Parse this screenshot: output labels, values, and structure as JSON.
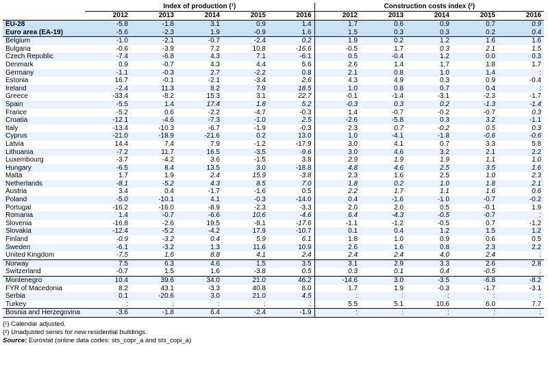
{
  "groups": {
    "production": "Index of production (¹)",
    "costs": "Construction costs index (²)"
  },
  "years": [
    "2012",
    "2013",
    "2014",
    "2015",
    "2016",
    "2012",
    "2013",
    "2014",
    "2015",
    "2016"
  ],
  "rows": [
    {
      "name": "EU-28",
      "v": [
        "-5.8",
        "-1.8",
        "3.1",
        "0.9",
        "1.4",
        "1.7",
        "0.6",
        "0.9",
        "0.7",
        "0.9"
      ],
      "i": [
        0,
        0,
        0,
        0,
        0,
        0,
        0,
        0,
        0,
        1
      ],
      "hl": true
    },
    {
      "name": "Euro area (EA-19)",
      "v": [
        "-5.6",
        "-2.3",
        "1.9",
        "-0.9",
        "1.6",
        "1.5",
        "0.3",
        "0.3",
        "0.2",
        "0.4"
      ],
      "i": [
        0,
        0,
        0,
        0,
        0,
        0,
        0,
        0,
        0,
        1
      ],
      "hl": true
    },
    {
      "name": "Belgium",
      "v": [
        "-1.0",
        "-2.1",
        "-0.7",
        "-2.4",
        "0.2",
        "1.9",
        "0.2",
        "1.2",
        "1.6",
        "1.6"
      ],
      "i": [
        0,
        0,
        0,
        0,
        1,
        0,
        0,
        0,
        0,
        0
      ],
      "grp": true
    },
    {
      "name": "Bulgaria",
      "v": [
        "-0.6",
        "-3.9",
        "7.2",
        "10.8",
        "-16.6",
        "-0.5",
        "1.7",
        "0.3",
        "2.1",
        "1.5"
      ],
      "i": [
        0,
        0,
        0,
        0,
        1,
        0,
        0,
        1,
        1,
        1
      ]
    },
    {
      "name": "Czech Republic",
      "v": [
        "-7.4",
        "-6.8",
        "4.3",
        "7.1",
        "-6.1",
        "0.5",
        "-0.4",
        "1.2",
        "0.0",
        "0.3"
      ],
      "i": [
        0,
        0,
        0,
        0,
        0,
        0,
        0,
        0,
        0,
        0
      ]
    },
    {
      "name": "Denmark",
      "v": [
        "0.9",
        "-0.7",
        "4.3",
        "4.4",
        "5.6",
        "2.6",
        "1.4",
        "1.7",
        "1.8",
        "1.7"
      ],
      "i": [
        0,
        0,
        0,
        0,
        0,
        0,
        0,
        0,
        0,
        0
      ]
    },
    {
      "name": "Germany",
      "v": [
        "-1.1",
        "-0.3",
        "2.7",
        "-2.2",
        "0.8",
        "2.1",
        "0.8",
        "1.0",
        "1.4",
        ":"
      ],
      "i": [
        0,
        0,
        0,
        0,
        0,
        0,
        0,
        0,
        0,
        0
      ]
    },
    {
      "name": "Estonia",
      "v": [
        "16.7",
        "-0.1",
        "-2.1",
        "-3.4",
        "2.6",
        "4.3",
        "4.9",
        "0.3",
        "0.9",
        "-0.4"
      ],
      "i": [
        0,
        0,
        0,
        0,
        1,
        0,
        0,
        0,
        0,
        0
      ]
    },
    {
      "name": "Ireland",
      "v": [
        "-2.4",
        "11.3",
        "8.2",
        "7.9",
        "18.5",
        "1.0",
        "0.8",
        "0.7",
        "0.4",
        ":"
      ],
      "i": [
        0,
        0,
        0,
        0,
        1,
        0,
        0,
        0,
        0,
        0
      ]
    },
    {
      "name": "Greece",
      "v": [
        "-33.4",
        "-8.2",
        "15.3",
        "3.1",
        "22.7",
        "-0.1",
        "-1.4",
        "-3.1",
        "-2.3",
        "-1.7"
      ],
      "i": [
        0,
        0,
        0,
        0,
        1,
        0,
        0,
        0,
        0,
        0
      ]
    },
    {
      "name": "Spain",
      "v": [
        "-5.5",
        "1.4",
        "17.4",
        "1.8",
        "5.2",
        "-0.3",
        "0.3",
        "0.2",
        "-1.3",
        "-1.4"
      ],
      "i": [
        0,
        0,
        1,
        1,
        1,
        1,
        1,
        1,
        1,
        1
      ]
    },
    {
      "name": "France",
      "v": [
        "-5.2",
        "0.6",
        "-2.2",
        "-4.7",
        "-0.3",
        "1.4",
        "-0.7",
        "-0.2",
        "-0.7",
        "0.3"
      ],
      "i": [
        0,
        0,
        0,
        0,
        0,
        0,
        0,
        0,
        0,
        1
      ]
    },
    {
      "name": "Croatia",
      "v": [
        "-12.1",
        "-4.6",
        "-7.3",
        "-1.0",
        "2.5",
        "-2.6",
        "-5.8",
        "0.3",
        "3.2",
        "-1.1"
      ],
      "i": [
        0,
        0,
        0,
        0,
        1,
        0,
        0,
        0,
        0,
        0
      ]
    },
    {
      "name": "Italy",
      "v": [
        "-13.4",
        "-10.3",
        "-6.7",
        "-1.9",
        "-0.3",
        "2.3",
        "0.7",
        "-0.2",
        "0.5",
        "0.3"
      ],
      "i": [
        0,
        0,
        0,
        0,
        0,
        0,
        1,
        1,
        1,
        1
      ]
    },
    {
      "name": "Cyprus",
      "v": [
        "-21.0",
        "-18.9",
        "-21.6",
        "0.2",
        "13.0",
        "1.0",
        "-4.1",
        "-1.8",
        "-0.6",
        "-0.6"
      ],
      "i": [
        0,
        0,
        0,
        0,
        0,
        0,
        0,
        0,
        1,
        1
      ]
    },
    {
      "name": "Latvia",
      "v": [
        "14.4",
        "7.4",
        "7.9",
        "-1.2",
        "-17.9",
        "3.0",
        "4.1",
        "0.7",
        "3.3",
        "5.8"
      ],
      "i": [
        0,
        0,
        0,
        0,
        0,
        0,
        0,
        0,
        0,
        0
      ]
    },
    {
      "name": "Lithuania",
      "v": [
        "-7.2",
        "11.7",
        "16.5",
        "-3.5",
        "-9.6",
        "3.0",
        "4.6",
        "3.2",
        "2.1",
        "2.2"
      ],
      "i": [
        0,
        0,
        0,
        0,
        1,
        0,
        0,
        0,
        0,
        0
      ]
    },
    {
      "name": "Luxembourg",
      "v": [
        "-3.7",
        "-4.2",
        "3.6",
        "-1.5",
        "3.8",
        "2.9",
        "1.9",
        "1.9",
        "1.1",
        "1.0"
      ],
      "i": [
        0,
        0,
        0,
        0,
        0,
        1,
        1,
        1,
        1,
        1
      ]
    },
    {
      "name": "Hungary",
      "v": [
        "-6.5",
        "8.4",
        "13.5",
        "3.0",
        "-18.8",
        "4.8",
        "4.6",
        "2.5",
        "3.5",
        "1.6"
      ],
      "i": [
        0,
        0,
        0,
        0,
        0,
        1,
        1,
        1,
        1,
        1
      ]
    },
    {
      "name": "Malta",
      "v": [
        "1.7",
        "1.9",
        "2.4",
        "15.9",
        "-3.8",
        "2.3",
        "1.6",
        "2.5",
        "1.0",
        "2.3"
      ],
      "i": [
        0,
        0,
        1,
        1,
        1,
        0,
        0,
        0,
        1,
        1
      ]
    },
    {
      "name": "Netherlands",
      "v": [
        "-8.1",
        "-5.2",
        "4.3",
        "8.5",
        "7.0",
        "1.8",
        "0.2",
        "1.0",
        "1.8",
        "2.1"
      ],
      "i": [
        1,
        1,
        1,
        1,
        1,
        1,
        1,
        1,
        1,
        1
      ]
    },
    {
      "name": "Austria",
      "v": [
        "3.4",
        "0.4",
        "-1.7",
        "-1.6",
        "0.5",
        "2.2",
        "1.7",
        "1.1",
        "1.6",
        "0.6"
      ],
      "i": [
        0,
        0,
        0,
        0,
        0,
        1,
        1,
        1,
        1,
        1
      ]
    },
    {
      "name": "Poland",
      "v": [
        "-5.0",
        "-10.1",
        "4.1",
        "-0.3",
        "-14.0",
        "0.4",
        "-1.6",
        "-1.0",
        "-0.7",
        "-0.2"
      ],
      "i": [
        0,
        0,
        0,
        0,
        0,
        0,
        0,
        0,
        0,
        0
      ]
    },
    {
      "name": "Portugal",
      "v": [
        "-16.2",
        "-16.0",
        "-8.9",
        "-2.3",
        "-3.3",
        "2.0",
        "2.0",
        "0.5",
        "-0.1",
        "1.9"
      ],
      "i": [
        0,
        0,
        0,
        0,
        0,
        0,
        0,
        0,
        0,
        0
      ]
    },
    {
      "name": "Romania",
      "v": [
        "1.4",
        "-0.7",
        "-6.6",
        "10.6",
        "-4.6",
        "6.4",
        "-4.3",
        "-0.5",
        "-0.7",
        ":"
      ],
      "i": [
        0,
        0,
        0,
        1,
        1,
        1,
        1,
        1,
        0,
        0
      ]
    },
    {
      "name": "Slovenia",
      "v": [
        "-16.8",
        "-2.6",
        "19.5",
        "-8.1",
        "-17.6",
        "-1.1",
        "-1.2",
        "-0.5",
        "0.7",
        "-1.2"
      ],
      "i": [
        0,
        0,
        0,
        0,
        1,
        0,
        0,
        0,
        0,
        0
      ]
    },
    {
      "name": "Slovakia",
      "v": [
        "-12.4",
        "-5.2",
        "-4.2",
        "17.9",
        "-10.7",
        "0.1",
        "0.4",
        "1.2",
        "1.5",
        "1.2"
      ],
      "i": [
        0,
        0,
        0,
        0,
        0,
        0,
        0,
        0,
        0,
        0
      ]
    },
    {
      "name": "Finland",
      "v": [
        "-0.9",
        "-3.2",
        "0.4",
        "5.9",
        "6.1",
        "1.8",
        "1.0",
        "0.9",
        "0.6",
        "0.5"
      ],
      "i": [
        1,
        1,
        1,
        1,
        1,
        0,
        0,
        0,
        0,
        0
      ]
    },
    {
      "name": "Sweden",
      "v": [
        "-6.1",
        "-3.2",
        "1.3",
        "11.6",
        "10.9",
        "2.6",
        "1.6",
        "0.8",
        "2.3",
        "2.2"
      ],
      "i": [
        0,
        0,
        0,
        0,
        0,
        0,
        0,
        0,
        0,
        0
      ]
    },
    {
      "name": "United Kingdom",
      "v": [
        "-7.5",
        "1.6",
        "8.8",
        "4.1",
        "2.4",
        "2.4",
        "2.4",
        "4.0",
        "2.4",
        ":"
      ],
      "i": [
        1,
        1,
        1,
        1,
        1,
        1,
        1,
        1,
        1,
        0
      ],
      "last": true
    },
    {
      "name": "Norway",
      "v": [
        "7.5",
        "6.3",
        "4.6",
        "1.5",
        "3.5",
        "3.1",
        "2.9",
        "3.3",
        "2.6",
        "2.8"
      ],
      "i": [
        0,
        0,
        0,
        0,
        0,
        0,
        0,
        0,
        0,
        0
      ],
      "grp": true
    },
    {
      "name": "Switzerland",
      "v": [
        "-0.7",
        "1.5",
        "1.6",
        "-3.8",
        "0.5",
        "0.3",
        "0.1",
        "0.4",
        "-0.5",
        ":"
      ],
      "i": [
        0,
        0,
        0,
        0,
        1,
        1,
        1,
        1,
        1,
        0
      ],
      "last": true
    },
    {
      "name": "Montenegro",
      "v": [
        "10.4",
        "39.6",
        "34.0",
        "21.0",
        "46.2",
        "-14.6",
        "3.0",
        "-3.5",
        "-6.8",
        "-8.2"
      ],
      "i": [
        0,
        0,
        0,
        0,
        0,
        0,
        0,
        0,
        0,
        0
      ],
      "grp": true
    },
    {
      "name": "FYR of Macedonia",
      "v": [
        "8.2",
        "43.1",
        "-3.3",
        "40.8",
        "8.0",
        "1.7",
        "1.9",
        "-0.3",
        "-1.7",
        "-3.1"
      ],
      "i": [
        0,
        0,
        0,
        0,
        0,
        0,
        0,
        0,
        0,
        0
      ]
    },
    {
      "name": "Serbia",
      "v": [
        "0.1",
        "-20.6",
        "3.0",
        "21.0",
        "4.5",
        ":",
        ":",
        ":",
        ":",
        ":"
      ],
      "i": [
        0,
        0,
        0,
        0,
        1,
        0,
        0,
        0,
        0,
        0
      ]
    },
    {
      "name": "Turkey",
      "v": [
        ":",
        ":",
        ":",
        ":",
        ":",
        "5.5",
        "5.1",
        "10.6",
        "6.0",
        "7.7"
      ],
      "i": [
        0,
        0,
        0,
        0,
        0,
        0,
        0,
        0,
        0,
        0
      ],
      "last": true
    },
    {
      "name": "Bosnia and Herzegovina",
      "v": [
        "-3.6",
        "-1.8",
        "6.4",
        "-2.4",
        "-1.9",
        ":",
        ":",
        ":",
        ":",
        ":"
      ],
      "i": [
        0,
        0,
        0,
        0,
        0,
        0,
        0,
        0,
        0,
        0
      ],
      "grp": true,
      "last": true
    }
  ],
  "notes": {
    "n1": "(¹) Calendar adjusted.",
    "n2": "(²) Unadjusted series for new residential buildings.",
    "source_label": "Source:",
    "source_text": " Eurostat (online data codes: sts_copr_a and sts_copi_a)"
  }
}
